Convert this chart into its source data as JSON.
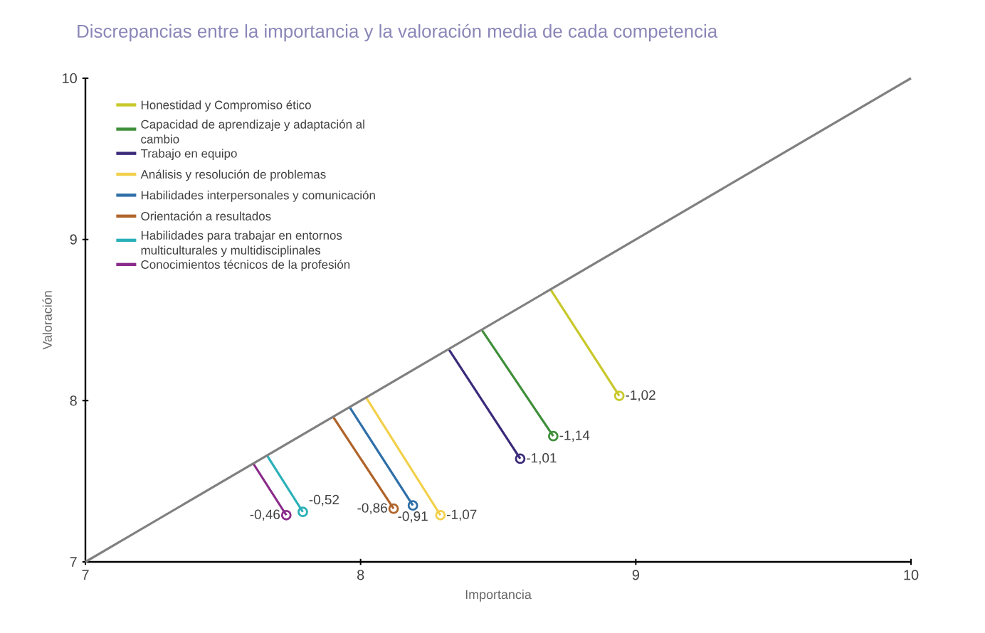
{
  "chart_data": {
    "type": "line",
    "title": "Discrepancias entre la importancia y la valoración media de cada competencia",
    "xlabel": "Importancia",
    "ylabel": "Valoración",
    "xlim": [
      7,
      10
    ],
    "ylim": [
      7,
      10
    ],
    "xticks": [
      7,
      8,
      9,
      10
    ],
    "yticks": [
      7,
      8,
      9,
      10
    ],
    "grid": false,
    "legend": "top left",
    "marker": "circle",
    "line_style": "solid",
    "series": [
      {
        "name": "Honestidad y Compromiso ético",
        "color": "#c8c82a",
        "x": [
          8.69,
          8.94
        ],
        "values": [
          8.69,
          8.03
        ]
      },
      {
        "name": "Capacidad de aprendizaje y adaptación al cambio",
        "color": "#3f8f3a",
        "x": [
          8.44,
          8.7
        ],
        "values": [
          8.44,
          7.78
        ]
      },
      {
        "name": "Trabajo en equipo",
        "color": "#3b2a7a",
        "x": [
          8.32,
          8.58
        ],
        "values": [
          8.32,
          7.64
        ]
      },
      {
        "name": "Análisis y resolución de problemas",
        "color": "#f2d04a",
        "x": [
          8.02,
          8.29
        ],
        "values": [
          8.02,
          7.29
        ]
      },
      {
        "name": "Habilidades interpersonales y comunicación",
        "color": "#2f6fa8",
        "x": [
          7.96,
          8.19
        ],
        "values": [
          7.96,
          7.35
        ]
      },
      {
        "name": "Orientación a resultados",
        "color": "#b0642a",
        "x": [
          7.9,
          8.12
        ],
        "values": [
          7.9,
          7.33
        ]
      },
      {
        "name": "Habilidades para trabajar en entornos multiculturales y multidisciplinales",
        "color": "#2ab0b8",
        "x": [
          7.66,
          7.79
        ],
        "values": [
          7.66,
          7.31
        ]
      },
      {
        "name": "Conocimientos técnicos de la profesión",
        "color": "#8a2a8a",
        "x": [
          7.61,
          7.73
        ],
        "values": [
          7.61,
          7.29
        ]
      },
      {
        "color": "#808080",
        "x": [
          7,
          10
        ],
        "values": [
          7,
          10
        ],
        "marker": "none"
      }
    ],
    "annotations": [
      {
        "text": "-1,02",
        "x": 8.94,
        "y": 8.03
      },
      {
        "text": "-1,14",
        "x": 8.7,
        "y": 7.78
      },
      {
        "text": "-1,01",
        "x": 8.58,
        "y": 7.64
      },
      {
        "text": "-1,07",
        "x": 8.29,
        "y": 7.29
      },
      {
        "text": "-0,91",
        "x": 8.19,
        "y": 7.35
      },
      {
        "text": "-0,86",
        "x": 8.12,
        "y": 7.33
      },
      {
        "text": "-0,52",
        "x": 7.79,
        "y": 7.31
      },
      {
        "text": "-0,46",
        "x": 7.73,
        "y": 7.29
      }
    ]
  }
}
